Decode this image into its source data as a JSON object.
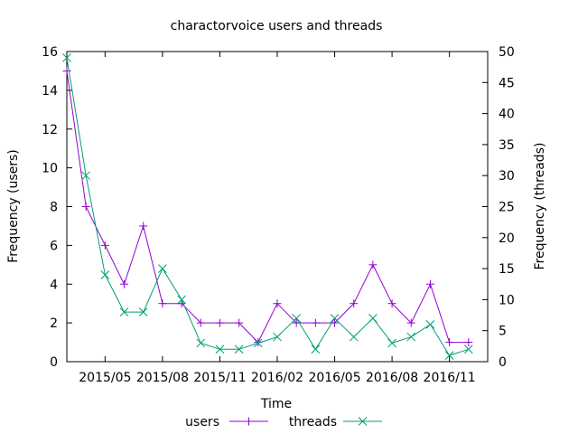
{
  "chart_data": {
    "type": "line",
    "title": "charactorvoice users and threads",
    "xlabel": "Time",
    "ylabel": "Frequency (users)",
    "y2label": "Frequency (threads)",
    "x": [
      "2015-03",
      "2015-04",
      "2015-05",
      "2015-06",
      "2015-07",
      "2015-08",
      "2015-09",
      "2015-10",
      "2015-11",
      "2015-12",
      "2016-01",
      "2016-02",
      "2016-03",
      "2016-04",
      "2016-05",
      "2016-06",
      "2016-07",
      "2016-08",
      "2016-09",
      "2016-10",
      "2016-11",
      "2016-12",
      "2017-01"
    ],
    "x_ticks": [
      "2015/05",
      "2015/08",
      "2015/11",
      "2016/02",
      "2016/05",
      "2016/08",
      "2016/11"
    ],
    "y_ticks": [
      0,
      2,
      4,
      6,
      8,
      10,
      12,
      14,
      16
    ],
    "y2_ticks": [
      0,
      5,
      10,
      15,
      20,
      25,
      30,
      35,
      40,
      45,
      50
    ],
    "ylim": [
      0,
      16
    ],
    "y2lim": [
      0,
      50
    ],
    "legend_position": "bottom-center",
    "grid": false,
    "series": [
      {
        "name": "users",
        "axis": "left",
        "color": "#9400d3",
        "marker": "plus",
        "values": [
          15,
          8,
          6,
          4,
          7,
          3,
          3,
          2,
          2,
          2,
          1,
          3,
          2,
          2,
          2,
          3,
          5,
          3,
          2,
          4,
          1,
          1,
          null
        ]
      },
      {
        "name": "threads",
        "axis": "right",
        "color": "#009e73",
        "marker": "cross",
        "values": [
          49,
          30,
          14,
          8,
          8,
          15,
          10,
          3,
          2,
          2,
          3,
          4,
          7,
          2,
          7,
          4,
          7,
          3,
          4,
          6,
          1,
          2,
          null
        ]
      }
    ]
  }
}
